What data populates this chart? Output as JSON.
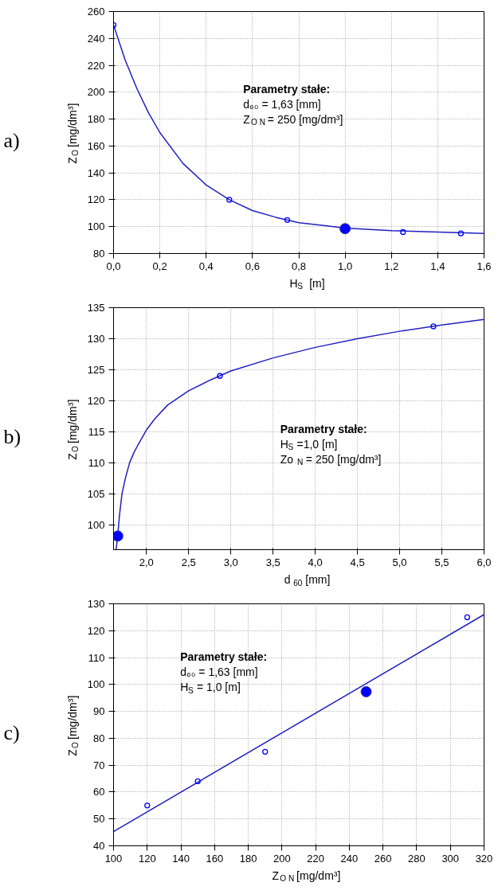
{
  "chart_data": [
    {
      "type": "line",
      "title": "a)",
      "xlabel": "H$_{S}$  [m]",
      "ylabel": "Z$_{O}$ [mg/dm³]",
      "annotations": [
        "Parametry stałe:",
        "d₆₀ = 1,63 [mm]",
        "Z$_{O N}$ = 250 [mg/dm³]"
      ],
      "xlim": [
        0,
        1.6
      ],
      "ylim": [
        80,
        260
      ],
      "xticks": [
        {
          "value": 0,
          "label": "0,0"
        },
        {
          "value": 0.2,
          "label": "0,2"
        },
        {
          "value": 0.4,
          "label": "0,4"
        },
        {
          "value": 0.6,
          "label": "0,6"
        },
        {
          "value": 0.8,
          "label": "0,8"
        },
        {
          "value": 1.0,
          "label": "1,0"
        },
        {
          "value": 1.2,
          "label": "1,2"
        },
        {
          "value": 1.4,
          "label": "1,4"
        },
        {
          "value": 1.6,
          "label": "1,6"
        }
      ],
      "yticks": [
        80,
        100,
        120,
        140,
        160,
        180,
        200,
        220,
        240,
        260
      ],
      "grid": true,
      "series": [
        {
          "color": "#2020c0",
          "x": [
            0,
            0.05,
            0.1,
            0.15,
            0.2,
            0.3,
            0.4,
            0.5,
            0.6,
            0.7,
            0.8,
            0.9,
            1.0,
            1.2,
            1.4,
            1.6
          ],
          "values": [
            250,
            224,
            203,
            185,
            170,
            147,
            131,
            120,
            112,
            107,
            103,
            101,
            99,
            97,
            96,
            95
          ]
        },
        {
          "type": "scatter",
          "marker": "circle",
          "color": "#0000ff",
          "x": [
            0,
            0.5,
            0.75,
            1.25,
            1.5
          ],
          "values": [
            250,
            120,
            105,
            96,
            95
          ]
        },
        {
          "type": "scatter",
          "marker": "circle",
          "color": "#0000ff",
          "x": [
            1.0
          ],
          "values": [
            98.5
          ]
        }
      ]
    },
    {
      "type": "line",
      "title": "b)",
      "xlabel": "d $_{60}$ [mm]",
      "ylabel": "Z$_{O}$ [mg/dm³]",
      "annotations": [
        "Parametry stałe:",
        "H$_{S}$ =1,0 [m]",
        "Zo $_{N}$ = 250 [mg/dm³]"
      ],
      "xlim": [
        1.61,
        6.0
      ],
      "ylim": [
        96,
        135
      ],
      "xticks": [
        {
          "value": 2.0,
          "label": "2,0"
        },
        {
          "value": 2.5,
          "label": "2,5"
        },
        {
          "value": 3.0,
          "label": "3,0"
        },
        {
          "value": 3.5,
          "label": "3,5"
        },
        {
          "value": 4.0,
          "label": "4,0"
        },
        {
          "value": 4.5,
          "label": "4,5"
        },
        {
          "value": 5.0,
          "label": "5,0"
        },
        {
          "value": 5.5,
          "label": "5,5"
        },
        {
          "value": 6.0,
          "label": "6,0"
        }
      ],
      "yticks": [
        100,
        105,
        110,
        115,
        120,
        125,
        130,
        135
      ],
      "grid": true,
      "series": [
        {
          "color": "#2020c0",
          "x": [
            1.64,
            1.66,
            1.68,
            1.71,
            1.75,
            1.8,
            1.85,
            1.9,
            2.0,
            2.1,
            2.25,
            2.5,
            2.75,
            3.0,
            3.5,
            4.0,
            4.5,
            5.0,
            5.5,
            6.0
          ],
          "values": [
            96,
            98.2,
            101.5,
            105,
            107.5,
            110,
            111.6,
            112.9,
            115.3,
            117.1,
            119.3,
            121.6,
            123.3,
            124.8,
            126.9,
            128.6,
            130.0,
            131.2,
            132.2,
            133.1
          ]
        },
        {
          "type": "scatter",
          "marker": "circle",
          "color": "#0000ff",
          "x": [
            2.87,
            5.4
          ],
          "values": [
            124,
            132
          ]
        },
        {
          "type": "scatter",
          "marker": "circle",
          "color": "#0000ff",
          "x": [
            1.66
          ],
          "values": [
            98.2
          ]
        }
      ]
    },
    {
      "type": "line",
      "title": "c)",
      "xlabel": "Z$_{O N}$ [mg/dm³]",
      "ylabel": "Z$_{O}$ [mg/dm³]",
      "annotations": [
        "Parametry stałe:",
        "d₆₀ = 1,63 [mm]",
        "H$_{S}$ = 1,0 [m]"
      ],
      "xlim": [
        100,
        320
      ],
      "ylim": [
        40,
        130
      ],
      "xticks": [
        100,
        120,
        140,
        160,
        180,
        200,
        220,
        240,
        260,
        280,
        300,
        320
      ],
      "yticks": [
        40,
        50,
        60,
        70,
        80,
        90,
        100,
        110,
        120,
        130
      ],
      "grid": true,
      "series": [
        {
          "color": "#2020c0",
          "x": [
            100,
            320
          ],
          "values": [
            45.3,
            126
          ]
        },
        {
          "type": "scatter",
          "marker": "circle",
          "color": "#0000ff",
          "x": [
            120,
            150,
            190,
            310
          ],
          "values": [
            55,
            64,
            75,
            125
          ]
        },
        {
          "type": "scatter",
          "marker": "circle",
          "color": "#0000ff",
          "x": [
            250
          ],
          "values": [
            97.3
          ]
        }
      ]
    }
  ]
}
